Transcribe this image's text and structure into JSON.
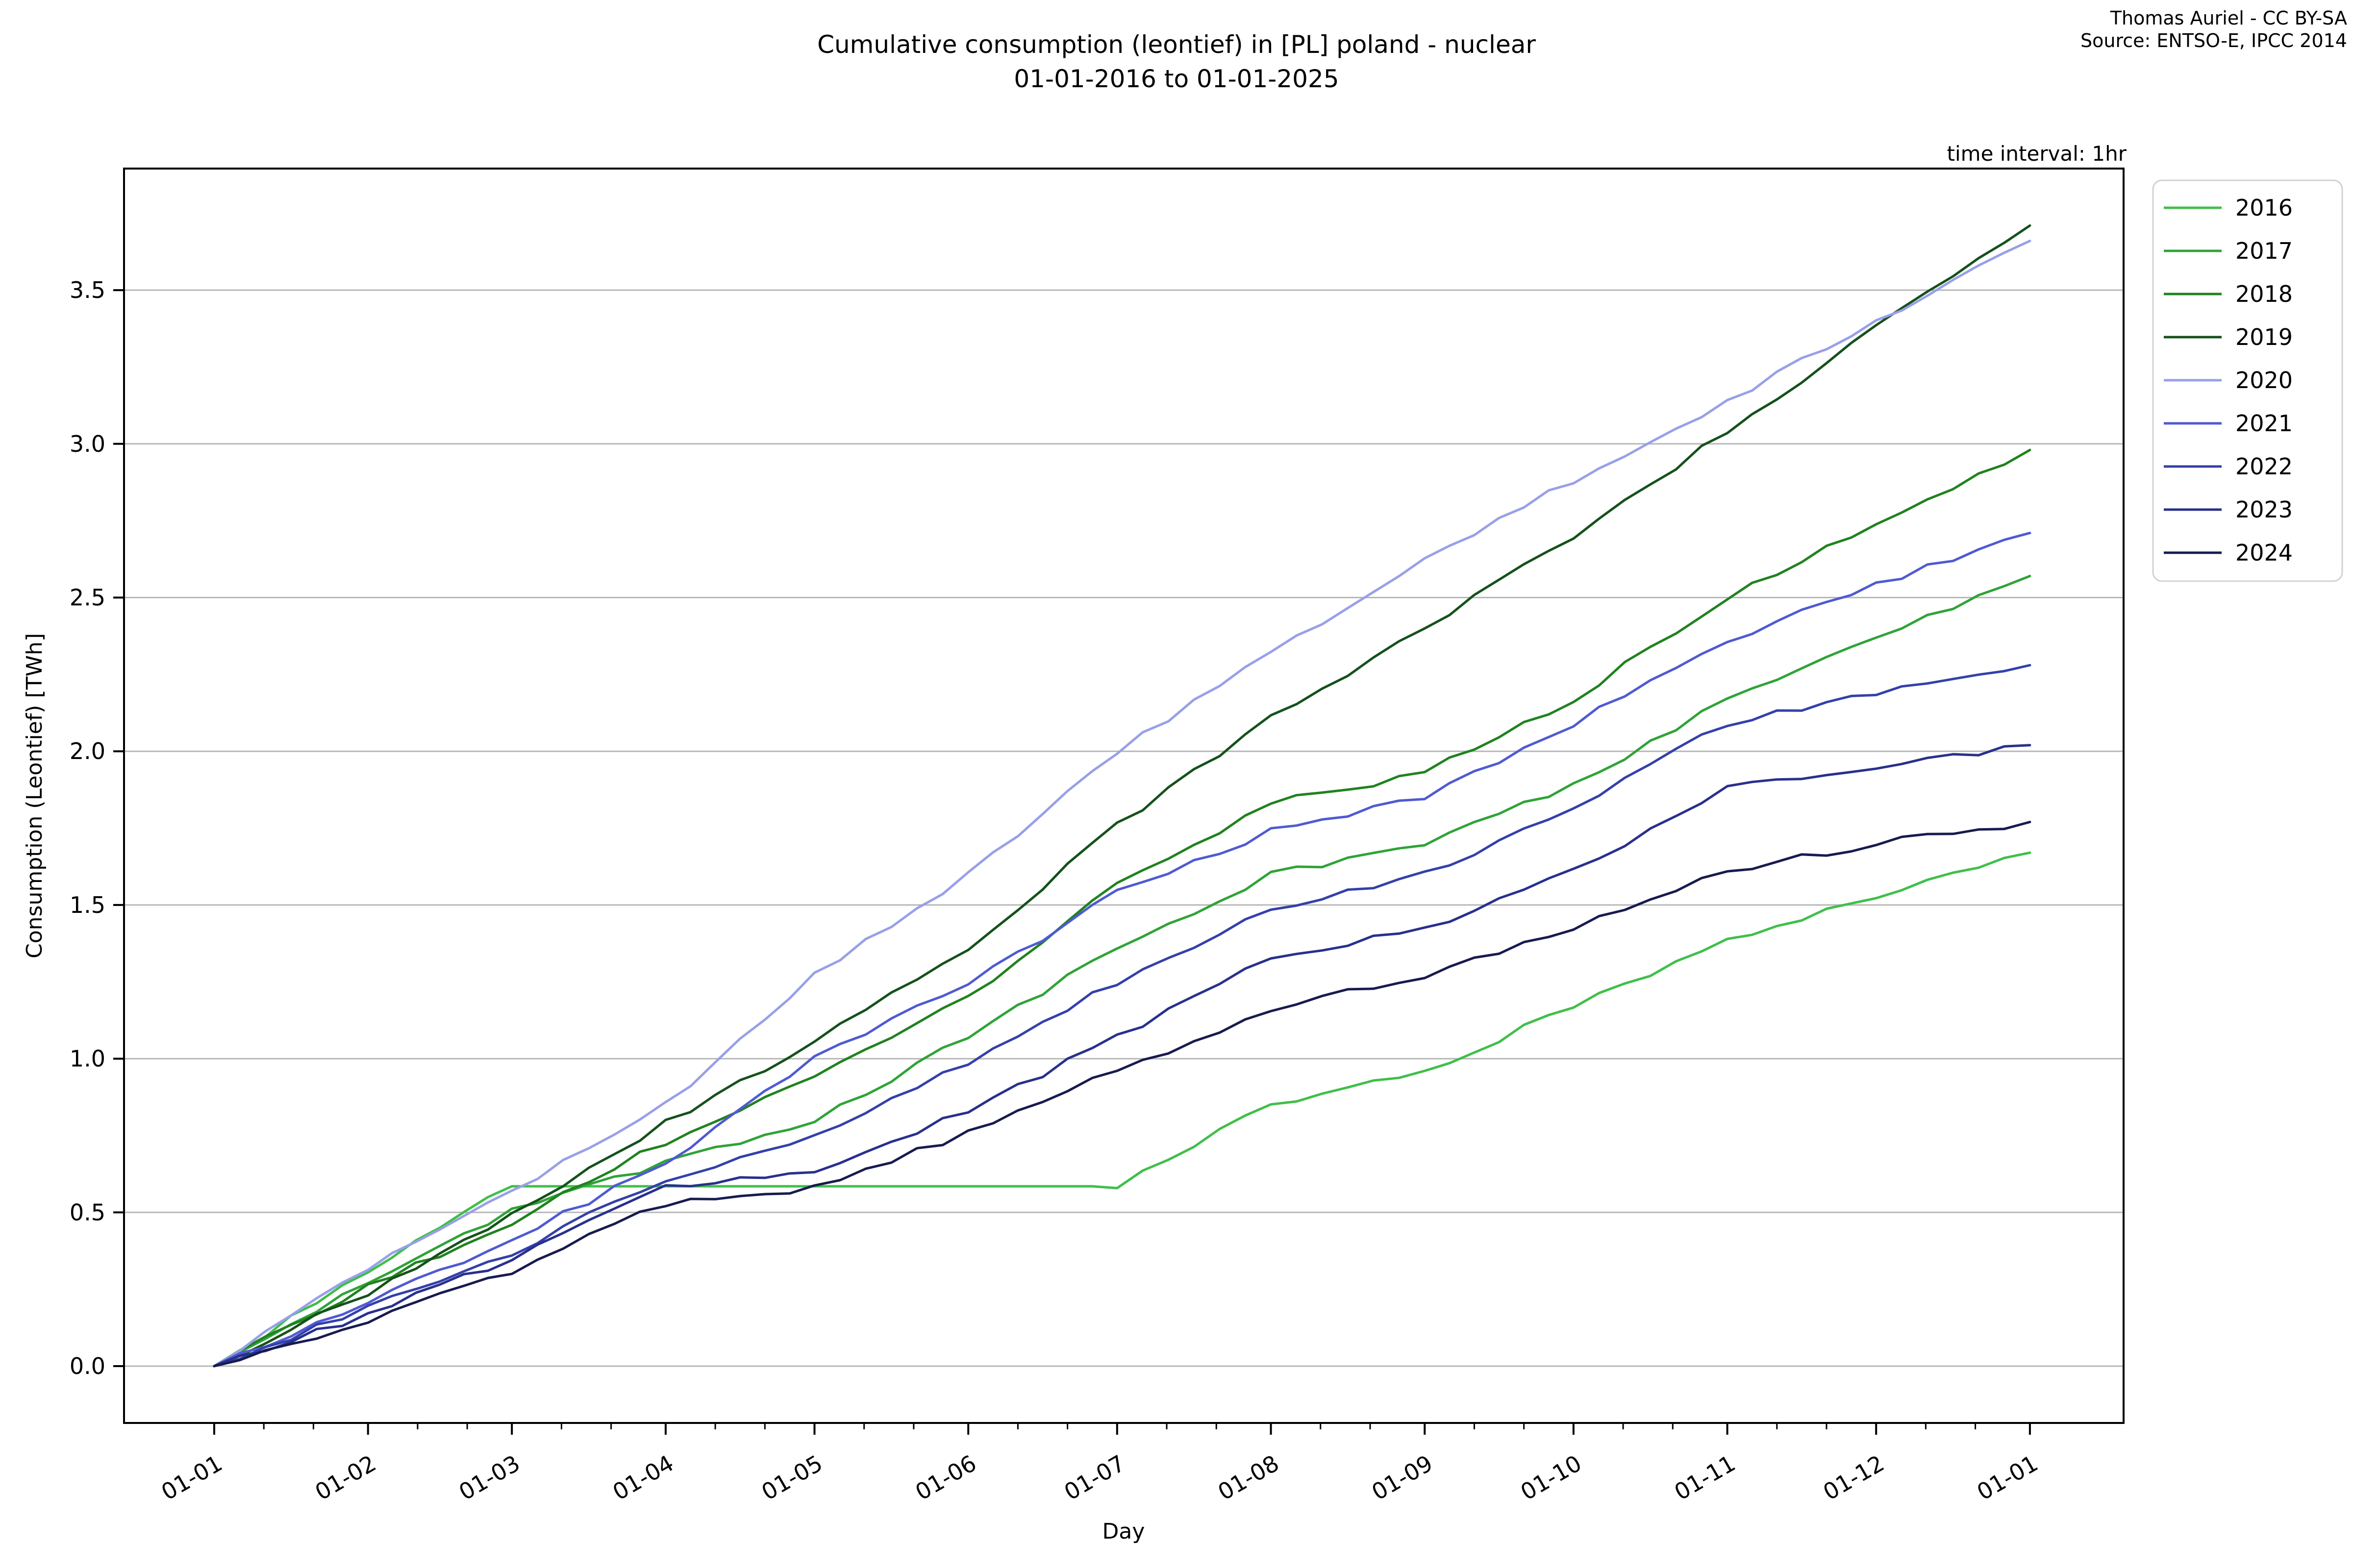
{
  "figure": {
    "title_line1": "Cumulative consumption (leontief) in [PL] poland - nuclear",
    "title_line2": "01-01-2016 to 01-01-2025",
    "attribution_line1": "Thomas Auriel - CC BY-SA",
    "attribution_line2": "Source: ENTSO-E, IPCC 2014",
    "annotation_top_right": "time interval: 1hr"
  },
  "chart_data": {
    "type": "line",
    "title": "Cumulative consumption (leontief) in [PL] poland - nuclear",
    "subtitle": "01-01-2016 to 01-01-2025",
    "xlabel": "Day",
    "ylabel": "Consumption (Leontief) [TWh]",
    "x_tick_labels": [
      "01-01",
      "01-02",
      "01-03",
      "01-04",
      "01-05",
      "01-06",
      "01-07",
      "01-08",
      "01-09",
      "01-10",
      "01-11",
      "01-12",
      "01-01"
    ],
    "y_tick_labels": [
      "0.0",
      "0.5",
      "1.0",
      "1.5",
      "2.0",
      "2.5",
      "3.0",
      "3.5"
    ],
    "ylim": [
      -0.18,
      3.9
    ],
    "grid": "horizontal-only",
    "legend_position": "outside upper right",
    "month_day_offsets": [
      0,
      31,
      60,
      91,
      121,
      152,
      182,
      213,
      244,
      274,
      305,
      335,
      366
    ],
    "series": [
      {
        "name": "2016",
        "color": "#3fbf4a",
        "monthly_values": [
          0,
          0.31,
          0.585,
          0.585,
          0.585,
          0.585,
          0.585,
          0.85,
          0.96,
          1.17,
          1.38,
          1.53,
          1.67
        ]
      },
      {
        "name": "2017",
        "color": "#2fa337",
        "monthly_values": [
          0,
          0.27,
          0.51,
          0.66,
          0.8,
          1.07,
          1.36,
          1.6,
          1.7,
          1.89,
          2.17,
          2.37,
          2.57
        ]
      },
      {
        "name": "2018",
        "color": "#20821f",
        "monthly_values": [
          0,
          0.26,
          0.47,
          0.73,
          0.94,
          1.2,
          1.57,
          1.83,
          1.93,
          2.17,
          2.5,
          2.74,
          2.98
        ]
      },
      {
        "name": "2019",
        "color": "#15511b",
        "monthly_values": [
          0,
          0.24,
          0.49,
          0.79,
          1.06,
          1.36,
          1.76,
          2.11,
          2.4,
          2.7,
          3.04,
          3.38,
          3.71
        ]
      },
      {
        "name": "2020",
        "color": "#98a0e8",
        "monthly_values": [
          0,
          0.32,
          0.57,
          0.85,
          1.27,
          1.6,
          2.0,
          2.32,
          2.63,
          2.88,
          3.14,
          3.4,
          3.66
        ]
      },
      {
        "name": "2021",
        "color": "#4f5ad2",
        "monthly_values": [
          0,
          0.21,
          0.41,
          0.66,
          1.01,
          1.24,
          1.54,
          1.74,
          1.85,
          2.09,
          2.36,
          2.54,
          2.71
        ]
      },
      {
        "name": "2022",
        "color": "#3440aa",
        "monthly_values": [
          0,
          0.19,
          0.37,
          0.61,
          0.75,
          0.99,
          1.25,
          1.49,
          1.6,
          1.82,
          2.09,
          2.19,
          2.28
        ]
      },
      {
        "name": "2023",
        "color": "#28308d",
        "monthly_values": [
          0,
          0.17,
          0.35,
          0.58,
          0.63,
          0.83,
          1.07,
          1.33,
          1.42,
          1.61,
          1.88,
          1.95,
          2.02
        ]
      },
      {
        "name": "2024",
        "color": "#171b4f",
        "monthly_values": [
          0,
          0.15,
          0.31,
          0.53,
          0.58,
          0.76,
          0.96,
          1.16,
          1.27,
          1.43,
          1.61,
          1.7,
          1.77
        ]
      }
    ]
  },
  "style": {
    "background": "#ffffff",
    "axis_color": "#000000",
    "grid_color": "#b8b8b8",
    "legend_border": "#d2d2d2",
    "legend_background": "#ffffff"
  }
}
